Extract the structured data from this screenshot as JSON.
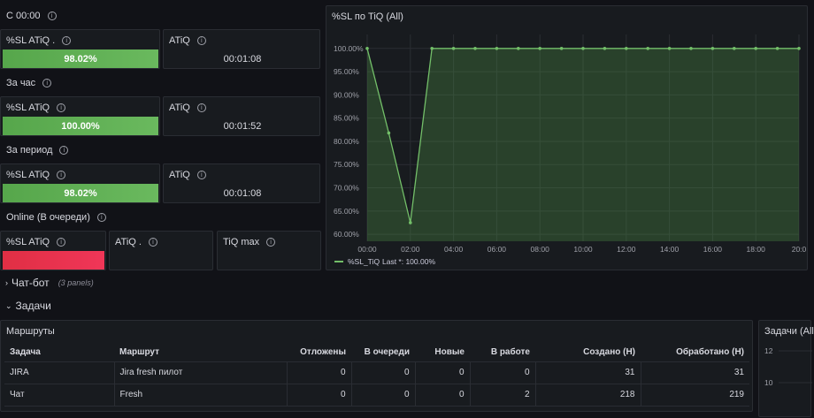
{
  "sections": {
    "since_midnight": "С 00:00",
    "last_hour": "За час",
    "period": "За период",
    "online": "Online (В очереди)"
  },
  "stats": {
    "r1": {
      "sl_title": "%SL ATiQ .",
      "sl_value": "98.02%",
      "atiq_title": "ATiQ",
      "atiq_value": "00:01:08"
    },
    "r2": {
      "sl_title": "%SL ATiQ",
      "sl_value": "100.00%",
      "atiq_title": "ATiQ",
      "atiq_value": "00:01:52"
    },
    "r3": {
      "sl_title": "%SL ATiQ",
      "sl_value": "98.02%",
      "atiq_title": "ATiQ",
      "atiq_value": "00:01:08"
    },
    "r4": {
      "sl_title": "%SL ATiQ",
      "atiq_title": "ATiQ .",
      "tiq_title": "TiQ max"
    }
  },
  "colors": {
    "green": "#56a64b",
    "red": "#e02f44",
    "line": "#73bf69"
  },
  "chart_data": {
    "type": "line",
    "title": "%SL по TiQ (All)",
    "x": [
      "00:00",
      "01:00",
      "02:00",
      "03:00",
      "04:00",
      "05:00",
      "06:00",
      "07:00",
      "08:00",
      "09:00",
      "10:00",
      "11:00",
      "12:00",
      "13:00",
      "14:00",
      "15:00",
      "16:00",
      "17:00",
      "18:00",
      "19:00",
      "20:00"
    ],
    "x_ticks": [
      "00:00",
      "02:00",
      "04:00",
      "06:00",
      "08:00",
      "10:00",
      "12:00",
      "14:00",
      "16:00",
      "18:00",
      "20:0"
    ],
    "y_ticks": [
      "100.00%",
      "95.00%",
      "90.00%",
      "85.00%",
      "80.00%",
      "75.00%",
      "70.00%",
      "65.00%",
      "60.00%"
    ],
    "series": [
      {
        "name": "%SL_TiQ",
        "values": [
          100,
          81.8,
          62.5,
          100,
          100,
          100,
          100,
          100,
          100,
          100,
          100,
          100,
          100,
          100,
          100,
          100,
          100,
          100,
          100,
          100,
          100
        ]
      }
    ],
    "ylim": [
      58.5,
      103
    ],
    "legend": "%SL_TiQ",
    "legend_last": "Last *: 100.00%"
  },
  "rows": {
    "chatbot": "Чат-бот",
    "chatbot_hint": "(3 panels)",
    "tasks": "Задачи"
  },
  "routes": {
    "title": "Маршруты",
    "headers": [
      "Задача",
      "Маршрут",
      "Отложены",
      "В очереди",
      "Новые",
      "В работе",
      "Создано (H)",
      "Обработано (H)"
    ],
    "rows": [
      [
        "JIRA",
        "Jira fresh пилот",
        "0",
        "0",
        "0",
        "0",
        "31",
        "31"
      ],
      [
        "Чат",
        "Fresh",
        "0",
        "0",
        "0",
        "2",
        "218",
        "219"
      ]
    ]
  },
  "tasks_panel": {
    "title": "Задачи (All",
    "y_ticks": [
      "12",
      "10"
    ]
  }
}
